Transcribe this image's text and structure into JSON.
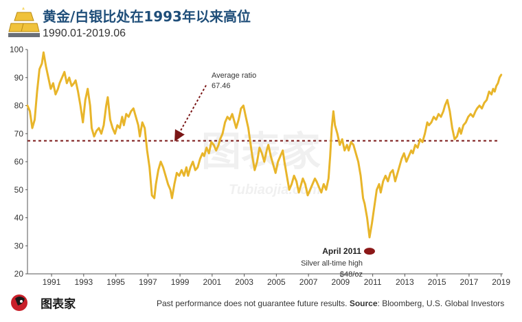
{
  "header": {
    "title": "黄金/白银比处在1993年以来高位",
    "subtitle": "1990.01-2019.06"
  },
  "footer": {
    "note": "Past performance does not guarantee future results.",
    "source_label": "Source",
    "source_text": ": Bloomberg, U.S. Global Investors",
    "brand": "图表家"
  },
  "watermark": {
    "text": "图表家",
    "url": "Tubiaojia.com"
  },
  "colors": {
    "line": "#e8b52a",
    "average": "#7a1616",
    "low_marker": "#8b1818",
    "title": "#1f4e79"
  },
  "chart_data": {
    "type": "line",
    "title": "黄金/白银比处在1993年以来高位",
    "subtitle": "1990.01-2019.06",
    "xlabel": "",
    "ylabel": "",
    "xlim": [
      1990.0,
      2019.6
    ],
    "ylim": [
      20,
      100
    ],
    "yticks": [
      20,
      30,
      40,
      50,
      60,
      70,
      80,
      90,
      100
    ],
    "xticks": [
      1991,
      1993,
      1995,
      1997,
      1999,
      2001,
      2003,
      2005,
      2007,
      2009,
      2011,
      2013,
      2015,
      2017,
      2019
    ],
    "grid": false,
    "average": {
      "value": 67.46,
      "label_line1": "Average ratio",
      "label_line2": "67.46"
    },
    "annotation": {
      "x": 2011.3,
      "y": 32,
      "title": "April 2011",
      "line1": "Silver all-time high",
      "line2": "$48/oz"
    },
    "series": [
      {
        "name": "",
        "points": [
          [
            1990.0,
            80
          ],
          [
            1990.15,
            78
          ],
          [
            1990.3,
            72
          ],
          [
            1990.45,
            75
          ],
          [
            1990.6,
            85
          ],
          [
            1990.75,
            93
          ],
          [
            1990.9,
            95
          ],
          [
            1991.0,
            99
          ],
          [
            1991.15,
            94
          ],
          [
            1991.3,
            90
          ],
          [
            1991.45,
            86
          ],
          [
            1991.6,
            88
          ],
          [
            1991.75,
            84
          ],
          [
            1991.9,
            86
          ],
          [
            1992.0,
            88
          ],
          [
            1992.15,
            90
          ],
          [
            1992.3,
            92
          ],
          [
            1992.45,
            88
          ],
          [
            1992.6,
            90
          ],
          [
            1992.75,
            87
          ],
          [
            1992.9,
            88
          ],
          [
            1993.0,
            89
          ],
          [
            1993.15,
            85
          ],
          [
            1993.3,
            80
          ],
          [
            1993.45,
            74
          ],
          [
            1993.6,
            82
          ],
          [
            1993.75,
            86
          ],
          [
            1993.9,
            80
          ],
          [
            1994.0,
            72
          ],
          [
            1994.15,
            69
          ],
          [
            1994.3,
            71
          ],
          [
            1994.45,
            72
          ],
          [
            1994.6,
            70
          ],
          [
            1994.75,
            73
          ],
          [
            1994.9,
            80
          ],
          [
            1995.0,
            83
          ],
          [
            1995.15,
            75
          ],
          [
            1995.3,
            72
          ],
          [
            1995.45,
            70
          ],
          [
            1995.6,
            73
          ],
          [
            1995.75,
            72
          ],
          [
            1995.9,
            76
          ],
          [
            1996.0,
            73
          ],
          [
            1996.15,
            77
          ],
          [
            1996.3,
            76
          ],
          [
            1996.45,
            78
          ],
          [
            1996.6,
            79
          ],
          [
            1996.75,
            76
          ],
          [
            1996.9,
            73
          ],
          [
            1997.0,
            69
          ],
          [
            1997.15,
            74
          ],
          [
            1997.3,
            72
          ],
          [
            1997.45,
            64
          ],
          [
            1997.6,
            58
          ],
          [
            1997.75,
            48
          ],
          [
            1997.9,
            47
          ],
          [
            1998.0,
            52
          ],
          [
            1998.15,
            57
          ],
          [
            1998.3,
            60
          ],
          [
            1998.45,
            58
          ],
          [
            1998.6,
            55
          ],
          [
            1998.75,
            52
          ],
          [
            1998.9,
            50
          ],
          [
            1999.0,
            47
          ],
          [
            1999.15,
            52
          ],
          [
            1999.3,
            56
          ],
          [
            1999.45,
            55
          ],
          [
            1999.6,
            57
          ],
          [
            1999.75,
            55
          ],
          [
            1999.9,
            58
          ],
          [
            2000.0,
            55
          ],
          [
            2000.15,
            58
          ],
          [
            2000.3,
            60
          ],
          [
            2000.45,
            57
          ],
          [
            2000.6,
            58
          ],
          [
            2000.75,
            61
          ],
          [
            2000.9,
            63
          ],
          [
            2001.0,
            62
          ],
          [
            2001.15,
            65
          ],
          [
            2001.3,
            63
          ],
          [
            2001.45,
            67
          ],
          [
            2001.6,
            66
          ],
          [
            2001.75,
            64
          ],
          [
            2001.9,
            66
          ],
          [
            2002.0,
            68
          ],
          [
            2002.15,
            70
          ],
          [
            2002.3,
            74
          ],
          [
            2002.45,
            76
          ],
          [
            2002.6,
            75
          ],
          [
            2002.75,
            77
          ],
          [
            2002.9,
            74
          ],
          [
            2003.0,
            72
          ],
          [
            2003.15,
            75
          ],
          [
            2003.3,
            79
          ],
          [
            2003.45,
            80
          ],
          [
            2003.6,
            76
          ],
          [
            2003.75,
            72
          ],
          [
            2003.9,
            66
          ],
          [
            2004.0,
            62
          ],
          [
            2004.15,
            57
          ],
          [
            2004.3,
            60
          ],
          [
            2004.45,
            65
          ],
          [
            2004.6,
            63
          ],
          [
            2004.75,
            60
          ],
          [
            2004.9,
            64
          ],
          [
            2005.0,
            66
          ],
          [
            2005.15,
            62
          ],
          [
            2005.3,
            59
          ],
          [
            2005.45,
            56
          ],
          [
            2005.6,
            60
          ],
          [
            2005.75,
            62
          ],
          [
            2005.9,
            64
          ],
          [
            2006.0,
            60
          ],
          [
            2006.15,
            55
          ],
          [
            2006.3,
            50
          ],
          [
            2006.45,
            52
          ],
          [
            2006.6,
            55
          ],
          [
            2006.75,
            53
          ],
          [
            2006.9,
            49
          ],
          [
            2007.0,
            51
          ],
          [
            2007.15,
            54
          ],
          [
            2007.3,
            52
          ],
          [
            2007.45,
            48
          ],
          [
            2007.6,
            50
          ],
          [
            2007.75,
            52
          ],
          [
            2007.9,
            54
          ],
          [
            2008.0,
            53
          ],
          [
            2008.15,
            51
          ],
          [
            2008.3,
            49
          ],
          [
            2008.45,
            52
          ],
          [
            2008.6,
            50
          ],
          [
            2008.75,
            54
          ],
          [
            2008.85,
            62
          ],
          [
            2008.95,
            72
          ],
          [
            2009.05,
            78
          ],
          [
            2009.15,
            73
          ],
          [
            2009.3,
            70
          ],
          [
            2009.45,
            66
          ],
          [
            2009.6,
            68
          ],
          [
            2009.75,
            64
          ],
          [
            2009.9,
            66
          ],
          [
            2010.0,
            64
          ],
          [
            2010.15,
            67
          ],
          [
            2010.3,
            66
          ],
          [
            2010.45,
            63
          ],
          [
            2010.6,
            60
          ],
          [
            2010.75,
            55
          ],
          [
            2010.9,
            47
          ],
          [
            2011.0,
            45
          ],
          [
            2011.15,
            40
          ],
          [
            2011.3,
            33
          ],
          [
            2011.45,
            38
          ],
          [
            2011.6,
            44
          ],
          [
            2011.75,
            50
          ],
          [
            2011.9,
            52
          ],
          [
            2012.0,
            49
          ],
          [
            2012.15,
            53
          ],
          [
            2012.3,
            55
          ],
          [
            2012.45,
            53
          ],
          [
            2012.6,
            56
          ],
          [
            2012.75,
            57
          ],
          [
            2012.9,
            53
          ],
          [
            2013.0,
            55
          ],
          [
            2013.15,
            58
          ],
          [
            2013.3,
            61
          ],
          [
            2013.45,
            63
          ],
          [
            2013.6,
            60
          ],
          [
            2013.75,
            62
          ],
          [
            2013.9,
            64
          ],
          [
            2014.0,
            63
          ],
          [
            2014.15,
            66
          ],
          [
            2014.3,
            65
          ],
          [
            2014.45,
            68
          ],
          [
            2014.6,
            67
          ],
          [
            2014.75,
            70
          ],
          [
            2014.9,
            74
          ],
          [
            2015.0,
            73
          ],
          [
            2015.15,
            74
          ],
          [
            2015.3,
            76
          ],
          [
            2015.45,
            75
          ],
          [
            2015.6,
            77
          ],
          [
            2015.75,
            76
          ],
          [
            2015.9,
            78
          ],
          [
            2016.0,
            80
          ],
          [
            2016.15,
            82
          ],
          [
            2016.3,
            78
          ],
          [
            2016.45,
            72
          ],
          [
            2016.6,
            68
          ],
          [
            2016.75,
            69
          ],
          [
            2016.9,
            72
          ],
          [
            2017.0,
            70
          ],
          [
            2017.15,
            73
          ],
          [
            2017.3,
            74
          ],
          [
            2017.45,
            76
          ],
          [
            2017.6,
            77
          ],
          [
            2017.75,
            76
          ],
          [
            2017.9,
            78
          ],
          [
            2018.0,
            79
          ],
          [
            2018.15,
            80
          ],
          [
            2018.3,
            79
          ],
          [
            2018.45,
            81
          ],
          [
            2018.6,
            82
          ],
          [
            2018.75,
            85
          ],
          [
            2018.9,
            84
          ],
          [
            2019.0,
            86
          ],
          [
            2019.1,
            85
          ],
          [
            2019.2,
            87
          ],
          [
            2019.3,
            88
          ],
          [
            2019.4,
            90
          ],
          [
            2019.5,
            91
          ]
        ]
      }
    ]
  }
}
